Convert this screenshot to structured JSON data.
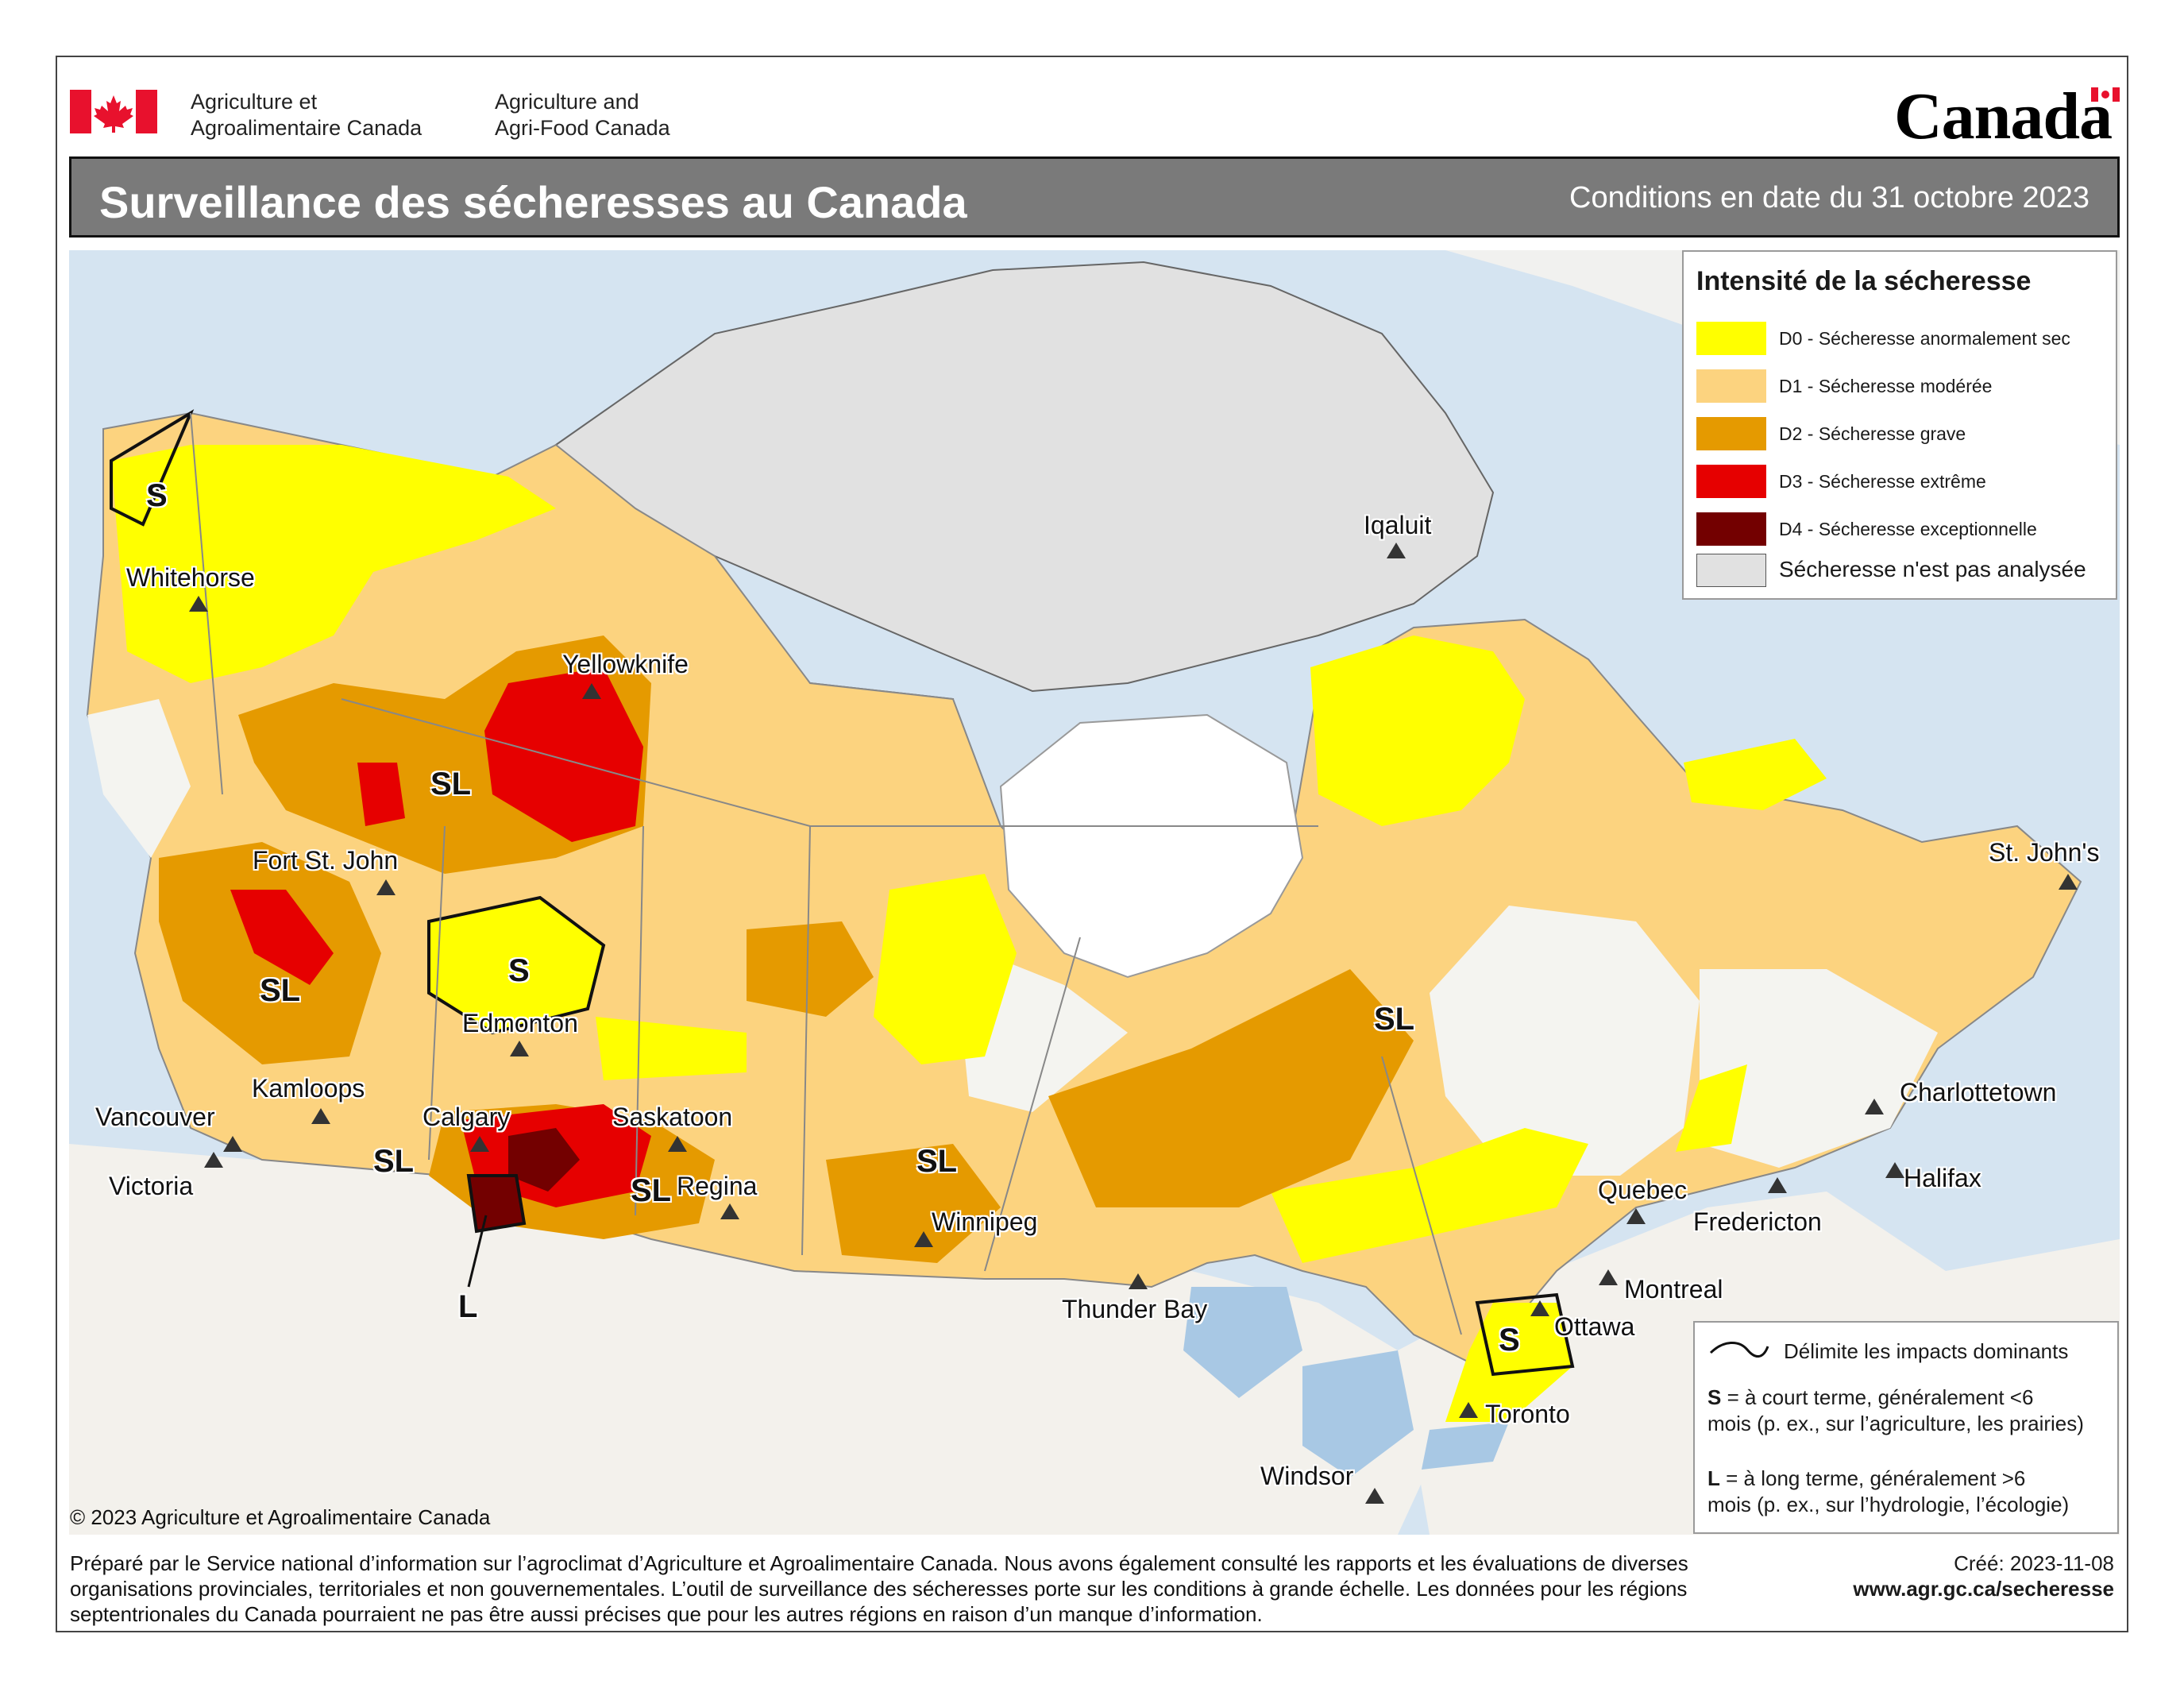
{
  "header": {
    "agency_fr": "Agriculture et\nAgroalimentaire Canada",
    "agency_fr_line1": "Agriculture et",
    "agency_fr_line2": "Agroalimentaire Canada",
    "agency_en_line1": "Agriculture and",
    "agency_en_line2": "Agri-Food Canada",
    "wordmark": "Canada",
    "title": "Surveillance des sécheresses au Canada",
    "date": "Conditions en date du 31 octobre 2023"
  },
  "legend": {
    "title": "Intensité de la sécheresse",
    "items": [
      {
        "label": "D0 - Sécheresse anormalement sec",
        "color": "#ffff00"
      },
      {
        "label": "D1 - Sécheresse modérée",
        "color": "#fcd37f"
      },
      {
        "label": "D2 - Sécheresse grave",
        "color": "#e59a00"
      },
      {
        "label": "D3 - Sécheresse extrême",
        "color": "#e60000"
      },
      {
        "label": "D4 - Sécheresse exceptionnelle",
        "color": "#730000"
      },
      {
        "label": "Sécheresse n'est pas analysée",
        "color": "#e1e1e1"
      }
    ]
  },
  "impact_legend": {
    "line_label": "Délimite les impacts dominants",
    "s_key": "S",
    "s_text_1": " = à court terme, généralement <6",
    "s_text_2": "mois (p. ex., sur l’agriculture, les prairies)",
    "l_key": "L",
    "l_text_1": " = à long terme, généralement >6",
    "l_text_2": "mois (p. ex., sur l’hydrologie, l’écologie)"
  },
  "cities": [
    {
      "name": "Whitehorse"
    },
    {
      "name": "Yellowknife"
    },
    {
      "name": "Iqaluit"
    },
    {
      "name": "Fort St. John"
    },
    {
      "name": "Edmonton"
    },
    {
      "name": "Kamloops"
    },
    {
      "name": "Vancouver"
    },
    {
      "name": "Victoria"
    },
    {
      "name": "Calgary"
    },
    {
      "name": "Saskatoon"
    },
    {
      "name": "Regina"
    },
    {
      "name": "Winnipeg"
    },
    {
      "name": "Thunder Bay"
    },
    {
      "name": "Windsor"
    },
    {
      "name": "Toronto"
    },
    {
      "name": "Ottawa"
    },
    {
      "name": "Montreal"
    },
    {
      "name": "Quebec"
    },
    {
      "name": "Fredericton"
    },
    {
      "name": "Charlottetown"
    },
    {
      "name": "Halifax"
    },
    {
      "name": "St. John's"
    }
  ],
  "impact_labels": [
    "S",
    "SL",
    "SL",
    "S",
    "SL",
    "SL",
    "SL",
    "L",
    "SL",
    "SL",
    "S"
  ],
  "copyright": "© 2023 Agriculture et Agroalimentaire Canada",
  "footer": "Préparé par le Service national d’information sur l’agroclimat d’Agriculture et Agroalimentaire Canada. Nous avons également consulté les rapports et les évaluations de diverses organisations provinciales, territoriales et non gouvernementales. L’outil de surveillance des sécheresses porte sur les conditions à grande échelle. Les données pour les régions septentrionales du Canada pourraient ne pas être aussi précises que pour les autres régions en raison d’un manque d’information.",
  "created": "Créé: 2023-11-08",
  "url": "www.agr.gc.ca/secheresse"
}
